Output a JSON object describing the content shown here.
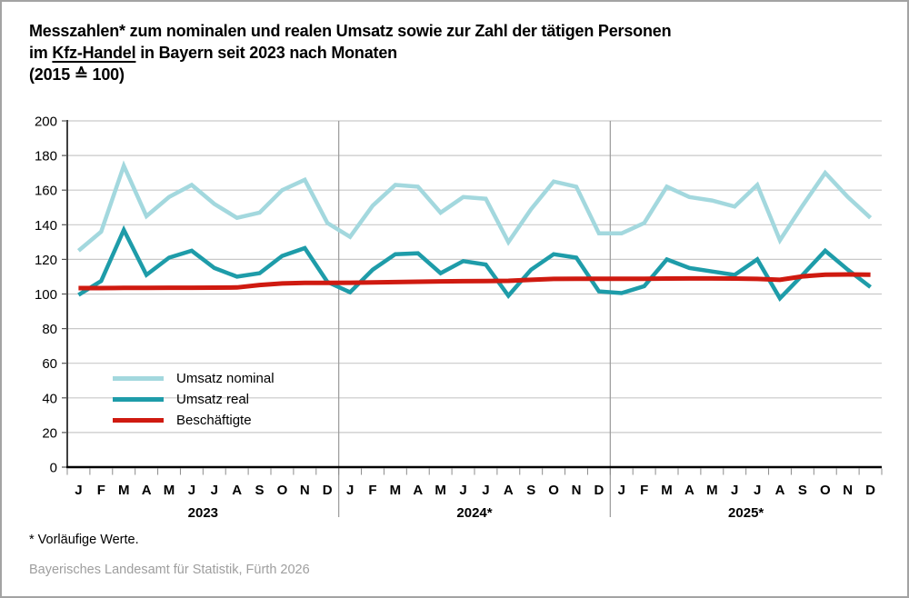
{
  "header": {
    "line1": "Messzahlen* zum nominalen und realen Umsatz sowie zur Zahl der tätigen Personen",
    "line2": {
      "pre": "im ",
      "underline": "Kfz-Handel",
      "post": " in Bayern seit 2023 nach Monaten"
    },
    "line3": "(2015 ≙ 100)"
  },
  "footnote": "* Vorläufige Werte.",
  "source": "Bayerisches Landesamt für Statistik, Fürth 2026",
  "chart_data": {
    "type": "line",
    "title": "Messzahlen zum nominalen und realen Umsatz sowie zur Zahl der tätigen Personen im Kfz-Handel in Bayern seit 2023 nach Monaten",
    "index_base": "2015 ≙ 100",
    "ylim": [
      0,
      200
    ],
    "y_ticks": [
      0,
      20,
      40,
      60,
      80,
      100,
      120,
      140,
      160,
      180,
      200
    ],
    "grid": true,
    "legend_position": "inside-left",
    "month_labels": [
      "J",
      "F",
      "M",
      "A",
      "M",
      "J",
      "J",
      "A",
      "S",
      "O",
      "N",
      "D"
    ],
    "years": [
      "2023",
      "2024*",
      "2025*"
    ],
    "series": [
      {
        "id": "umsatz-nominal",
        "name": "Umsatz nominal",
        "color": "#a3d8de",
        "width": 4.5,
        "values": [
          125,
          136,
          174,
          145,
          156,
          163,
          152,
          144,
          147,
          160,
          166,
          141,
          133,
          151,
          163,
          162,
          147,
          156,
          155,
          130,
          149,
          165,
          162,
          135,
          135,
          141,
          162,
          156,
          154,
          150.5,
          163,
          131,
          151,
          170,
          156,
          144
        ]
      },
      {
        "id": "umsatz-real",
        "name": "Umsatz real",
        "color": "#1e9ca9",
        "width": 4.5,
        "values": [
          99.5,
          107.5,
          137,
          111,
          121,
          125,
          115,
          110,
          112,
          122,
          126.5,
          107,
          101,
          114,
          123,
          123.5,
          112,
          119,
          117,
          99,
          114,
          123,
          121,
          101.5,
          100.5,
          104.5,
          120,
          115,
          113,
          111,
          120,
          97.5,
          111,
          125,
          114,
          104
        ]
      },
      {
        "id": "beschaeftigte",
        "name": "Beschäftigte",
        "color": "#cf1a10",
        "width": 5,
        "values": [
          103.4,
          103.4,
          103.5,
          103.5,
          103.6,
          103.6,
          103.7,
          103.8,
          105.2,
          106.1,
          106.4,
          106.4,
          106.5,
          106.7,
          106.9,
          107.1,
          107.3,
          107.4,
          107.5,
          107.6,
          108.2,
          108.7,
          108.8,
          108.8,
          108.8,
          108.8,
          108.9,
          109,
          109,
          108.9,
          108.7,
          108.2,
          110.2,
          111.2,
          111.3,
          111.2
        ]
      }
    ]
  }
}
